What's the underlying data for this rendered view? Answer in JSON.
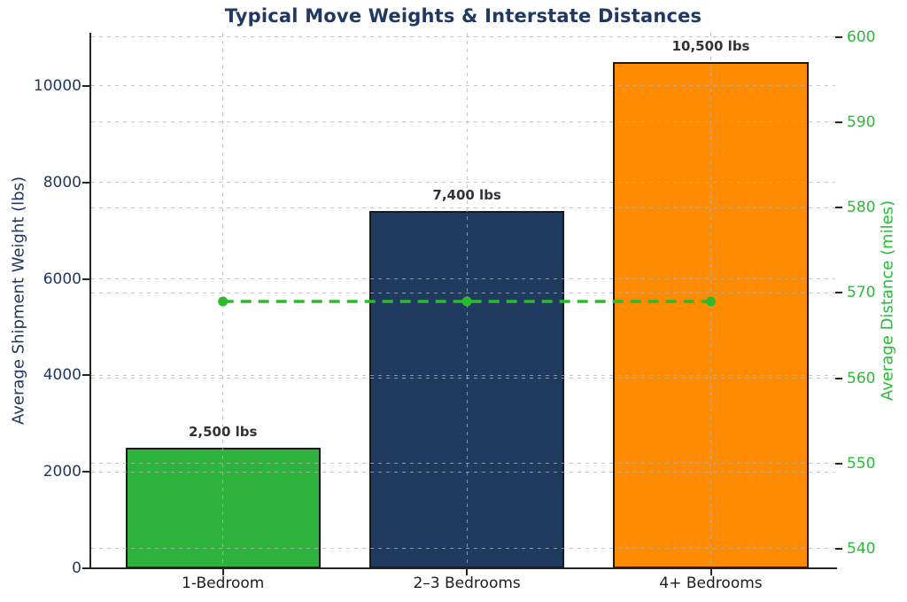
{
  "chart_data": {
    "type": "bar",
    "title": "Typical Move Weights & Interstate Distances",
    "title_color": "#1f3864",
    "categories": [
      "1-Bedroom",
      "2–3 Bedrooms",
      "4+ Bedrooms"
    ],
    "series": [
      {
        "name": "Average Shipment Weight (lbs)",
        "chart_type": "bar",
        "axis": "left",
        "values": [
          2500,
          7400,
          10500
        ],
        "value_labels": [
          "2,500 lbs",
          "7,400 lbs",
          "10,500 lbs"
        ],
        "bar_colors": [
          "#2eb43e",
          "#1f3b60",
          "#ff8c00"
        ],
        "edge_color": "#1a1a1a"
      },
      {
        "name": "Average Distance (miles)",
        "chart_type": "line",
        "axis": "right",
        "values": [
          569,
          569,
          569
        ],
        "color": "#2db92d",
        "line_style": "dashed",
        "marker": "circle"
      }
    ],
    "left_axis": {
      "label": "Average Shipment Weight (lbs)",
      "ticks": [
        0,
        2000,
        4000,
        6000,
        8000,
        10000
      ],
      "range": [
        0,
        11100
      ],
      "color": "#1f3864"
    },
    "right_axis": {
      "label": "Average Distance (miles)",
      "ticks": [
        540,
        550,
        560,
        570,
        580,
        590,
        600
      ],
      "range": [
        537.7,
        600.5
      ],
      "color": "#2db93a"
    },
    "x_tick_color": "#1c1c1c",
    "grid": true,
    "gridline_color": "#b2b2b2",
    "tick_mark_color": "#262626",
    "spine_color": "#262626",
    "legend_position": "none",
    "xlim": [
      -0.54,
      2.51
    ],
    "bar_width_units": 0.8
  }
}
